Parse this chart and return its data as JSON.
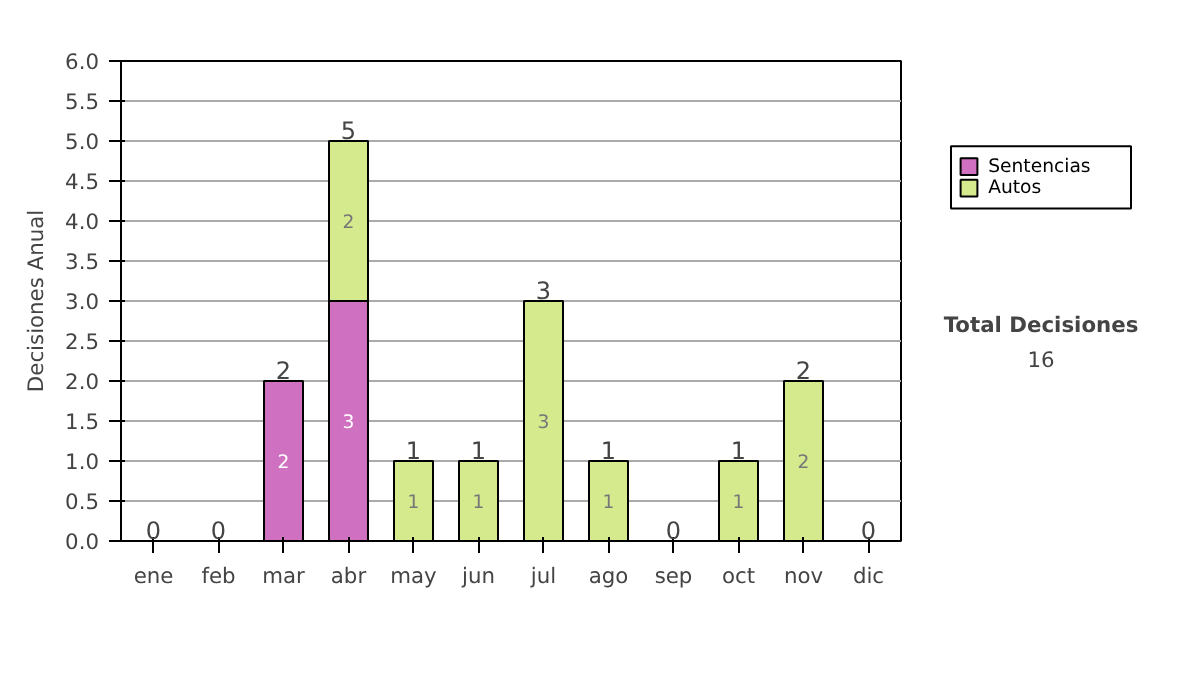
{
  "chart_data": {
    "type": "bar",
    "stacked": true,
    "ylabel": "Decisiones Anual",
    "categories": [
      "ene",
      "feb",
      "mar",
      "abr",
      "may",
      "jun",
      "jul",
      "ago",
      "sep",
      "oct",
      "nov",
      "dic"
    ],
    "series": [
      {
        "name": "Sentencias",
        "color": "#d070c0",
        "values": [
          null,
          null,
          2,
          3,
          null,
          null,
          null,
          null,
          null,
          null,
          null,
          null
        ]
      },
      {
        "name": "Autos",
        "color": "#d4ea8c",
        "values": [
          null,
          null,
          null,
          2,
          1,
          1,
          3,
          1,
          null,
          1,
          2,
          null
        ]
      }
    ],
    "data_labels": true,
    "totals": [
      "0",
      "0",
      "2",
      "5",
      "1",
      "1",
      "3",
      "1",
      "0",
      "1",
      "2",
      "0"
    ],
    "ylim": [
      0,
      6
    ],
    "yticks": [
      {
        "value": 0,
        "label": "0.0"
      },
      0.5,
      {
        "value": 1,
        "label": "1.0"
      },
      1.5,
      {
        "value": 2,
        "label": "2.0"
      },
      2.5,
      {
        "value": 3,
        "label": "3.0"
      },
      3.5,
      {
        "value": 4,
        "label": "4.0"
      },
      4.5,
      {
        "value": 5,
        "label": "5.0"
      },
      5.5,
      {
        "value": 6,
        "label": "6.0"
      }
    ],
    "grid": "y",
    "legend": "right",
    "annotations": [
      "Total Decisiones",
      "16"
    ]
  }
}
